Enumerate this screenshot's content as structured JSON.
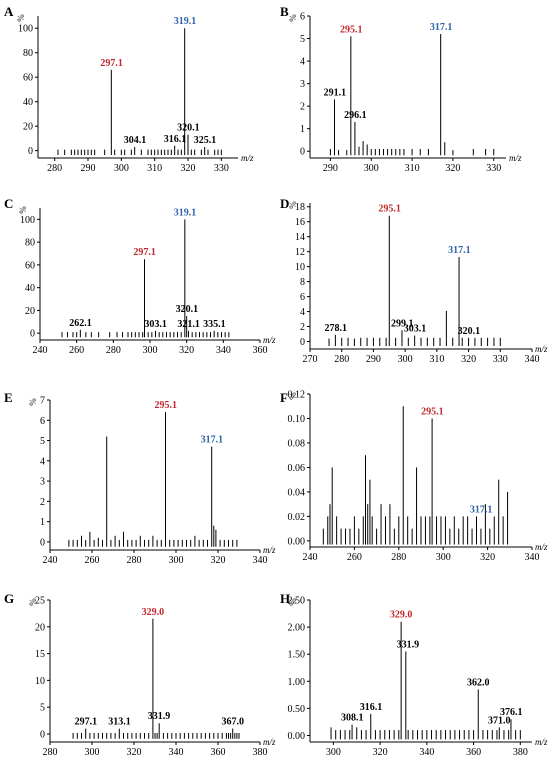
{
  "colors": {
    "red": "#c0282d",
    "blue": "#2e63a8",
    "black": "#000000"
  },
  "chart_data": [
    {
      "type": "bar",
      "panel": "A",
      "ylabel": "%",
      "xlabel": "m/z",
      "xlim": [
        275,
        335
      ],
      "ylim": [
        -6,
        110
      ],
      "xticks": [
        280,
        290,
        300,
        310,
        320,
        330
      ],
      "yticks": [
        0,
        20,
        40,
        60,
        80,
        100
      ],
      "x": [
        281,
        283,
        285,
        286,
        287,
        288,
        289,
        290,
        291,
        292,
        295,
        297,
        298,
        300,
        301,
        303,
        304,
        306,
        308,
        309,
        310,
        311,
        312,
        313,
        314,
        315,
        316,
        317,
        318,
        319,
        320,
        321,
        322,
        324,
        325,
        326,
        328,
        329,
        330
      ],
      "y": [
        0,
        0,
        0,
        0,
        0,
        0,
        0,
        0,
        0,
        0,
        0,
        66,
        0,
        0,
        0,
        0,
        3,
        0,
        0,
        0,
        0,
        0,
        0,
        0,
        0,
        0,
        4,
        0,
        0,
        100,
        13,
        0,
        0,
        0,
        3,
        0,
        0,
        0,
        0
      ],
      "labels": [
        {
          "text": "297.1",
          "x": 297.1,
          "y": 66,
          "color": "red"
        },
        {
          "text": "319.1",
          "x": 319.1,
          "y": 100,
          "color": "blue"
        },
        {
          "text": "304.1",
          "x": 304.1,
          "y": 3,
          "color": "black"
        },
        {
          "text": "316.1",
          "x": 316.1,
          "y": 4,
          "color": "black"
        },
        {
          "text": "320.1",
          "x": 320.1,
          "y": 13,
          "color": "black"
        },
        {
          "text": "325.1",
          "x": 325.1,
          "y": 3,
          "color": "black"
        }
      ]
    },
    {
      "type": "bar",
      "panel": "B",
      "ylabel": "%",
      "xlabel": "m/z",
      "xlim": [
        285,
        333
      ],
      "ylim": [
        -0.3,
        6
      ],
      "xticks": [
        290,
        300,
        310,
        320,
        330
      ],
      "yticks": [
        0,
        1,
        2,
        3,
        4,
        5,
        6
      ],
      "x": [
        290,
        291,
        292,
        294,
        295,
        296,
        297,
        298,
        299,
        300,
        301,
        302,
        303,
        304,
        305,
        306,
        307,
        308,
        310,
        312,
        314,
        317,
        318,
        320,
        325,
        328,
        330
      ],
      "y": [
        0.1,
        2.3,
        0.05,
        0.05,
        5.1,
        1.3,
        0.2,
        0.45,
        0.3,
        0.1,
        0.1,
        0.1,
        0.1,
        0.1,
        0.1,
        0.1,
        0.1,
        0.1,
        0.1,
        0.1,
        0.1,
        5.2,
        0.4,
        0.05,
        0.1,
        0.1,
        0.1
      ],
      "labels": [
        {
          "text": "291.1",
          "x": 291.1,
          "y": 2.3,
          "color": "black"
        },
        {
          "text": "295.1",
          "x": 295.1,
          "y": 5.1,
          "color": "red"
        },
        {
          "text": "296.1",
          "x": 296.1,
          "y": 1.3,
          "color": "black"
        },
        {
          "text": "317.1",
          "x": 317.1,
          "y": 5.2,
          "color": "blue"
        }
      ]
    },
    {
      "type": "bar",
      "panel": "C",
      "ylabel": "%",
      "xlabel": "m/z",
      "xlim": [
        240,
        360
      ],
      "ylim": [
        -6,
        110
      ],
      "xticks": [
        240,
        260,
        280,
        300,
        320,
        340,
        360
      ],
      "yticks": [
        0,
        20,
        40,
        60,
        80,
        100
      ],
      "x": [
        252,
        255,
        258,
        260,
        262,
        265,
        268,
        272,
        278,
        282,
        285,
        288,
        290,
        292,
        294,
        296,
        297,
        299,
        301,
        303,
        305,
        307,
        309,
        311,
        313,
        315,
        317,
        319,
        320,
        321,
        323,
        325,
        327,
        329,
        331,
        333,
        335,
        337,
        339,
        341,
        343
      ],
      "y": [
        0,
        0,
        0,
        0,
        3,
        0,
        0,
        0,
        0,
        0,
        0,
        0,
        0,
        0,
        0,
        0,
        65,
        0,
        0,
        2,
        0,
        0,
        0,
        0,
        0,
        0,
        0,
        100,
        15,
        2,
        0,
        0,
        0,
        0,
        0,
        0,
        2,
        0,
        0,
        0,
        0
      ],
      "labels": [
        {
          "text": "262.1",
          "x": 262.1,
          "y": 3,
          "color": "black"
        },
        {
          "text": "297.1",
          "x": 297.1,
          "y": 65,
          "color": "red"
        },
        {
          "text": "303.1",
          "x": 303.1,
          "y": 2,
          "color": "black"
        },
        {
          "text": "319.1",
          "x": 319.1,
          "y": 100,
          "color": "blue"
        },
        {
          "text": "320.1",
          "x": 320.1,
          "y": 15,
          "color": "black"
        },
        {
          "text": "321.1",
          "x": 321.1,
          "y": 2,
          "color": "black"
        },
        {
          "text": "335.1",
          "x": 335.1,
          "y": 2,
          "color": "black"
        }
      ]
    },
    {
      "type": "bar",
      "panel": "D",
      "ylabel": "%",
      "xlabel": "m/z",
      "xlim": [
        270,
        340
      ],
      "ylim": [
        -1,
        18.5
      ],
      "xticks": [
        270,
        280,
        290,
        300,
        310,
        320,
        330,
        340
      ],
      "yticks": [
        0,
        2,
        4,
        6,
        8,
        10,
        12,
        14,
        16,
        18
      ],
      "x": [
        276,
        278,
        280,
        282,
        284,
        286,
        288,
        290,
        292,
        294,
        295,
        297,
        299,
        301,
        303,
        305,
        307,
        309,
        311,
        313,
        315,
        317,
        318,
        320,
        322,
        324,
        326,
        328,
        330
      ],
      "y": [
        0.4,
        0.9,
        0.5,
        0.5,
        0.4,
        0.5,
        0.5,
        0.5,
        0.5,
        0.5,
        16.8,
        0.5,
        1.5,
        0.5,
        0.8,
        0.5,
        0.5,
        0.5,
        0.5,
        4.1,
        0.5,
        11.3,
        0.5,
        0.5,
        0.5,
        0.5,
        0.5,
        0.5,
        0.5
      ],
      "labels": [
        {
          "text": "278.1",
          "x": 278.1,
          "y": 0.9,
          "color": "black"
        },
        {
          "text": "295.1",
          "x": 295.1,
          "y": 16.8,
          "color": "red"
        },
        {
          "text": "299.1",
          "x": 299.1,
          "y": 1.5,
          "color": "black"
        },
        {
          "text": "303.1",
          "x": 303.1,
          "y": 0.8,
          "color": "black"
        },
        {
          "text": "317.1",
          "x": 317.1,
          "y": 11.3,
          "color": "blue"
        },
        {
          "text": "320.1",
          "x": 320.1,
          "y": 0.5,
          "color": "black"
        }
      ]
    },
    {
      "type": "bar",
      "panel": "E",
      "ylabel": "%",
      "xlabel": "m/z",
      "xlim": [
        240,
        340
      ],
      "ylim": [
        -0.4,
        7
      ],
      "xticks": [
        240,
        260,
        280,
        300,
        320,
        340
      ],
      "yticks": [
        0,
        1,
        2,
        3,
        4,
        5,
        6,
        7
      ],
      "x": [
        249,
        251,
        253,
        255,
        257,
        259,
        261,
        263,
        265,
        267,
        269,
        271,
        273,
        275,
        277,
        279,
        281,
        283,
        285,
        287,
        289,
        291,
        293,
        295,
        297,
        299,
        301,
        303,
        305,
        307,
        309,
        311,
        313,
        315,
        317,
        318,
        319,
        321,
        323,
        325,
        327,
        329
      ],
      "y": [
        0.1,
        0.1,
        0.1,
        0.3,
        0.1,
        0.5,
        0.1,
        0.2,
        0.1,
        5.2,
        0.1,
        0.3,
        0.1,
        0.5,
        0.1,
        0.1,
        0.1,
        0.3,
        0.1,
        0.1,
        0.3,
        0.1,
        0.1,
        6.4,
        0.1,
        0.1,
        0.1,
        0.1,
        0.1,
        0.1,
        0.3,
        0.1,
        0.1,
        0.1,
        4.7,
        0.8,
        0.6,
        0.1,
        0.1,
        0.1,
        0.1,
        0.1
      ],
      "labels": [
        {
          "text": "295.1",
          "x": 295.1,
          "y": 6.4,
          "color": "red"
        },
        {
          "text": "317.1",
          "x": 317.1,
          "y": 4.7,
          "color": "blue"
        }
      ]
    },
    {
      "type": "bar",
      "panel": "F",
      "ylabel": "%",
      "xlabel": "m/z",
      "xlim": [
        240,
        340
      ],
      "ylim": [
        -0.005,
        0.12
      ],
      "xticks": [
        240,
        260,
        280,
        300,
        320,
        340
      ],
      "yticks": [
        0.0,
        0.02,
        0.04,
        0.06,
        0.08,
        0.1,
        0.12
      ],
      "x": [
        246,
        248,
        249,
        250,
        252,
        254,
        256,
        258,
        260,
        262,
        264,
        265,
        266,
        267,
        268,
        270,
        272,
        274,
        276,
        278,
        280,
        282,
        284,
        286,
        288,
        290,
        292,
        294,
        295,
        297,
        299,
        301,
        303,
        305,
        307,
        309,
        311,
        313,
        315,
        317,
        319,
        321,
        323,
        325,
        327,
        329
      ],
      "y": [
        0.01,
        0.02,
        0.03,
        0.06,
        0.02,
        0.01,
        0.01,
        0.01,
        0.02,
        0.01,
        0.02,
        0.07,
        0.03,
        0.05,
        0.02,
        0.01,
        0.03,
        0.02,
        0.03,
        0.01,
        0.02,
        0.11,
        0.02,
        0.01,
        0.06,
        0.02,
        0.02,
        0.02,
        0.1,
        0.02,
        0.02,
        0.02,
        0.01,
        0.02,
        0.01,
        0.02,
        0.02,
        0.01,
        0.02,
        0.01,
        0.03,
        0.01,
        0.02,
        0.05,
        0.02,
        0.04
      ],
      "labels": [
        {
          "text": "295.1",
          "x": 295.1,
          "y": 0.1,
          "color": "red"
        },
        {
          "text": "317.1",
          "x": 317.1,
          "y": 0.02,
          "color": "blue"
        }
      ]
    },
    {
      "type": "bar",
      "panel": "G",
      "ylabel": "%",
      "xlabel": "m/z",
      "xlim": [
        280,
        380
      ],
      "ylim": [
        -1.5,
        25
      ],
      "xticks": [
        280,
        300,
        320,
        340,
        360,
        380
      ],
      "yticks": [
        0,
        5,
        10,
        15,
        20,
        25
      ],
      "x": [
        291,
        293,
        295,
        297,
        299,
        301,
        303,
        305,
        307,
        309,
        311,
        313,
        315,
        317,
        319,
        321,
        323,
        325,
        327,
        329,
        330,
        331,
        332,
        334,
        336,
        338,
        340,
        342,
        344,
        346,
        348,
        350,
        352,
        354,
        356,
        358,
        360,
        362,
        364,
        365,
        366,
        367,
        368,
        369,
        370
      ],
      "y": [
        0,
        0,
        0,
        1,
        0,
        0,
        0,
        0,
        0,
        0,
        0,
        1,
        0,
        0,
        0,
        0,
        0,
        0,
        0,
        21.5,
        0,
        0,
        2,
        0,
        0,
        0,
        0,
        0,
        0,
        0,
        0,
        0,
        0,
        0,
        0,
        0,
        0,
        0,
        0,
        0,
        0,
        1,
        0,
        0,
        0
      ],
      "labels": [
        {
          "text": "297.1",
          "x": 297.1,
          "y": 1,
          "color": "black"
        },
        {
          "text": "313.1",
          "x": 313.1,
          "y": 1,
          "color": "black"
        },
        {
          "text": "329.0",
          "x": 329.0,
          "y": 21.5,
          "color": "red"
        },
        {
          "text": "331.9",
          "x": 331.9,
          "y": 2,
          "color": "black"
        },
        {
          "text": "367.0",
          "x": 367.0,
          "y": 1,
          "color": "black"
        }
      ]
    },
    {
      "type": "bar",
      "panel": "H",
      "ylabel": "%",
      "xlabel": "m/z",
      "xlim": [
        290,
        385
      ],
      "ylim": [
        -0.12,
        2.5
      ],
      "xticks": [
        300,
        320,
        340,
        360,
        380
      ],
      "yticks": [
        0.0,
        0.5,
        1.0,
        1.5,
        2.0,
        2.5
      ],
      "x": [
        299,
        301,
        303,
        305,
        307,
        308,
        310,
        312,
        314,
        316,
        318,
        320,
        322,
        324,
        326,
        328,
        329,
        331,
        332,
        334,
        336,
        338,
        340,
        342,
        344,
        346,
        348,
        350,
        352,
        354,
        356,
        358,
        360,
        362,
        364,
        366,
        368,
        370,
        371,
        373,
        375,
        376,
        378,
        380
      ],
      "y": [
        0.15,
        0.1,
        0.1,
        0.1,
        0.1,
        0.2,
        0.15,
        0.1,
        0.1,
        0.4,
        0.1,
        0.1,
        0.1,
        0.1,
        0.1,
        0.1,
        2.1,
        1.55,
        0.1,
        0.1,
        0.1,
        0.1,
        0.1,
        0.1,
        0.1,
        0.1,
        0.1,
        0.1,
        0.1,
        0.1,
        0.1,
        0.1,
        0.1,
        0.85,
        0.1,
        0.1,
        0.1,
        0.1,
        0.15,
        0.1,
        0.1,
        0.3,
        0.1,
        0.1
      ],
      "labels": [
        {
          "text": "308.1",
          "x": 308.1,
          "y": 0.2,
          "color": "black"
        },
        {
          "text": "316.1",
          "x": 316.1,
          "y": 0.4,
          "color": "black"
        },
        {
          "text": "329.0",
          "x": 329.0,
          "y": 2.1,
          "color": "red"
        },
        {
          "text": "331.9",
          "x": 331.9,
          "y": 1.55,
          "color": "black"
        },
        {
          "text": "362.0",
          "x": 362.0,
          "y": 0.85,
          "color": "black"
        },
        {
          "text": "371.0",
          "x": 371.0,
          "y": 0.15,
          "color": "black"
        },
        {
          "text": "376.1",
          "x": 376.1,
          "y": 0.3,
          "color": "black"
        }
      ]
    }
  ]
}
